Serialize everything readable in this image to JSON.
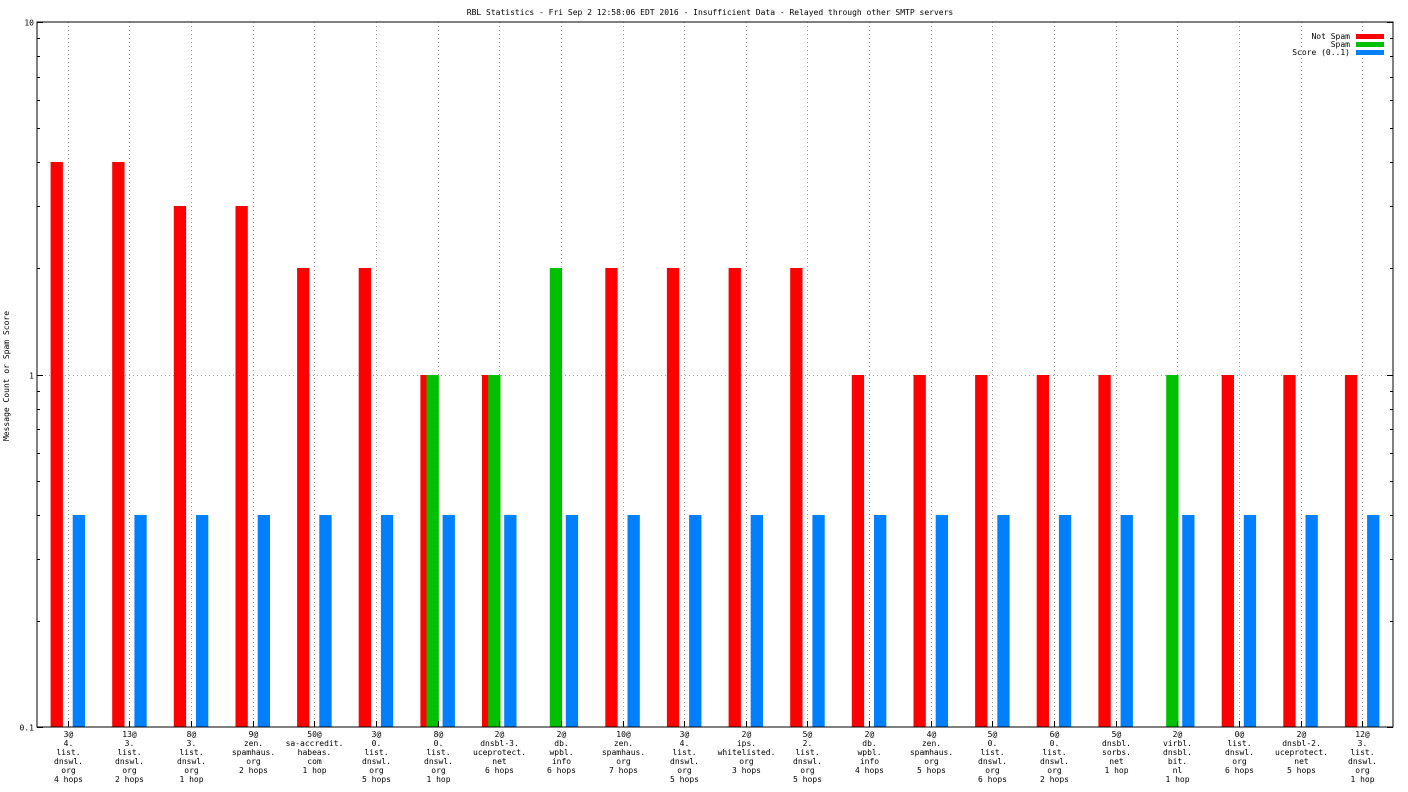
{
  "chart_data": {
    "type": "bar",
    "title": "RBL Statistics - Fri Sep  2 12:58:06 EDT 2016 - Insufficient Data - Relayed through other SMTP servers",
    "ylabel": "Message Count or Spam Score",
    "xlabel": "",
    "yscale": "log",
    "ylim": [
      0.1,
      10
    ],
    "y_ticks": [
      "0.1",
      "1",
      "10"
    ],
    "grid": true,
    "legend_position": "top-right",
    "categories": [
      [
        "3@",
        "4.",
        "list.",
        "dnswl.",
        "org",
        "4 hops"
      ],
      [
        "13@",
        "3.",
        "list.",
        "dnswl.",
        "org",
        "2 hops"
      ],
      [
        "8@",
        "3.",
        "list.",
        "dnswl.",
        "org",
        "1 hop"
      ],
      [
        "9@",
        "zen.",
        "spamhaus.",
        "org",
        "2 hops"
      ],
      [
        "50@",
        "sa-accredit.",
        "habeas.",
        "com",
        "1 hop"
      ],
      [
        "3@",
        "0.",
        "list.",
        "dnswl.",
        "org",
        "5 hops"
      ],
      [
        "8@",
        "0.",
        "list.",
        "dnswl.",
        "org",
        "1 hop"
      ],
      [
        "2@",
        "dnsbl-3.",
        "uceprotect.",
        "net",
        "6 hops"
      ],
      [
        "2@",
        "db.",
        "wpbl.",
        "info",
        "6 hops"
      ],
      [
        "10@",
        "zen.",
        "spamhaus.",
        "org",
        "7 hops"
      ],
      [
        "3@",
        "4.",
        "list.",
        "dnswl.",
        "org",
        "5 hops"
      ],
      [
        "2@",
        "ips.",
        "whitelisted.",
        "org",
        "3 hops"
      ],
      [
        "5@",
        "2.",
        "list.",
        "dnswl.",
        "org",
        "5 hops"
      ],
      [
        "2@",
        "db.",
        "wpbl.",
        "info",
        "4 hops"
      ],
      [
        "4@",
        "zen.",
        "spamhaus.",
        "org",
        "5 hops"
      ],
      [
        "5@",
        "0.",
        "list.",
        "dnswl.",
        "org",
        "6 hops"
      ],
      [
        "6@",
        "0.",
        "list.",
        "dnswl.",
        "org",
        "2 hops"
      ],
      [
        "5@",
        "dnsbl.",
        "sorbs.",
        "net",
        "1 hop"
      ],
      [
        "2@",
        "virbl.",
        "dnsbl.",
        "bit.",
        "nl",
        "1 hop"
      ],
      [
        "0@",
        "list.",
        "dnswl.",
        "org",
        "6 hops"
      ],
      [
        "2@",
        "dnsbl-2.",
        "uceprotect.",
        "net",
        "5 hops"
      ],
      [
        "12@",
        "3.",
        "list.",
        "dnswl.",
        "org",
        "1 hop"
      ]
    ],
    "series": [
      {
        "name": "Not Spam",
        "color": "#ff0000",
        "values": [
          4,
          4,
          3,
          3,
          2,
          2,
          1,
          1,
          null,
          2,
          2,
          2,
          2,
          1,
          1,
          1,
          1,
          1,
          null,
          1,
          1,
          1
        ]
      },
      {
        "name": "Spam",
        "color": "#00c000",
        "values": [
          null,
          null,
          null,
          null,
          null,
          null,
          1,
          1,
          2,
          null,
          null,
          null,
          null,
          null,
          null,
          null,
          null,
          null,
          1,
          null,
          null,
          null
        ]
      },
      {
        "name": "Score (0..1)",
        "color": "#0080ff",
        "values": [
          0.4,
          0.4,
          0.4,
          0.4,
          0.4,
          0.4,
          0.4,
          0.4,
          0.4,
          0.4,
          0.4,
          0.4,
          0.4,
          0.4,
          0.4,
          0.4,
          0.4,
          0.4,
          0.4,
          0.4,
          0.4,
          0.4
        ]
      }
    ]
  }
}
